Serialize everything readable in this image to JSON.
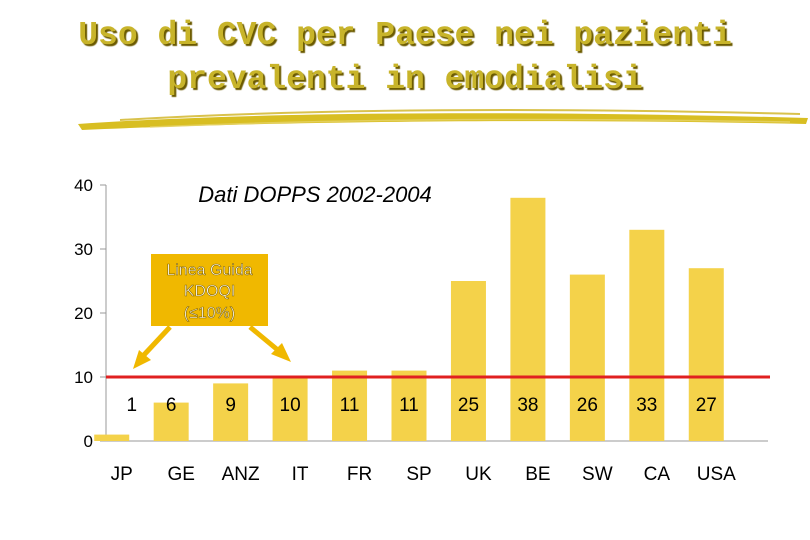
{
  "title_line1": "Uso di CVC per Paese nei pazienti",
  "title_line2": "prevalenti in emodialisi",
  "colors": {
    "title": "#c8b42a",
    "bar": "#f4d24a",
    "reference_line": "#e02020",
    "callout_fill": "#f0b800",
    "axis": "#999999"
  },
  "chart_data": {
    "type": "bar",
    "title": "Dati DOPPS 2002-2004",
    "categories": [
      "JP",
      "GE",
      "ANZ",
      "IT",
      "FR",
      "SP",
      "UK",
      "BE",
      "SW",
      "CA",
      "USA"
    ],
    "values": [
      1,
      6,
      9,
      10,
      11,
      11,
      25,
      38,
      26,
      33,
      27
    ],
    "data_labels": [
      "1",
      "6",
      "9",
      "10",
      "11",
      "11",
      "25",
      "38",
      "26",
      "33",
      "27"
    ],
    "y_ticks": [
      "0",
      "10",
      "20",
      "30",
      "40"
    ],
    "ylim": [
      0,
      40
    ],
    "reference_value": 10,
    "annotation": {
      "line1": "Linea Guida",
      "line2": "KDOQI",
      "line3": "(≤10%)"
    }
  }
}
